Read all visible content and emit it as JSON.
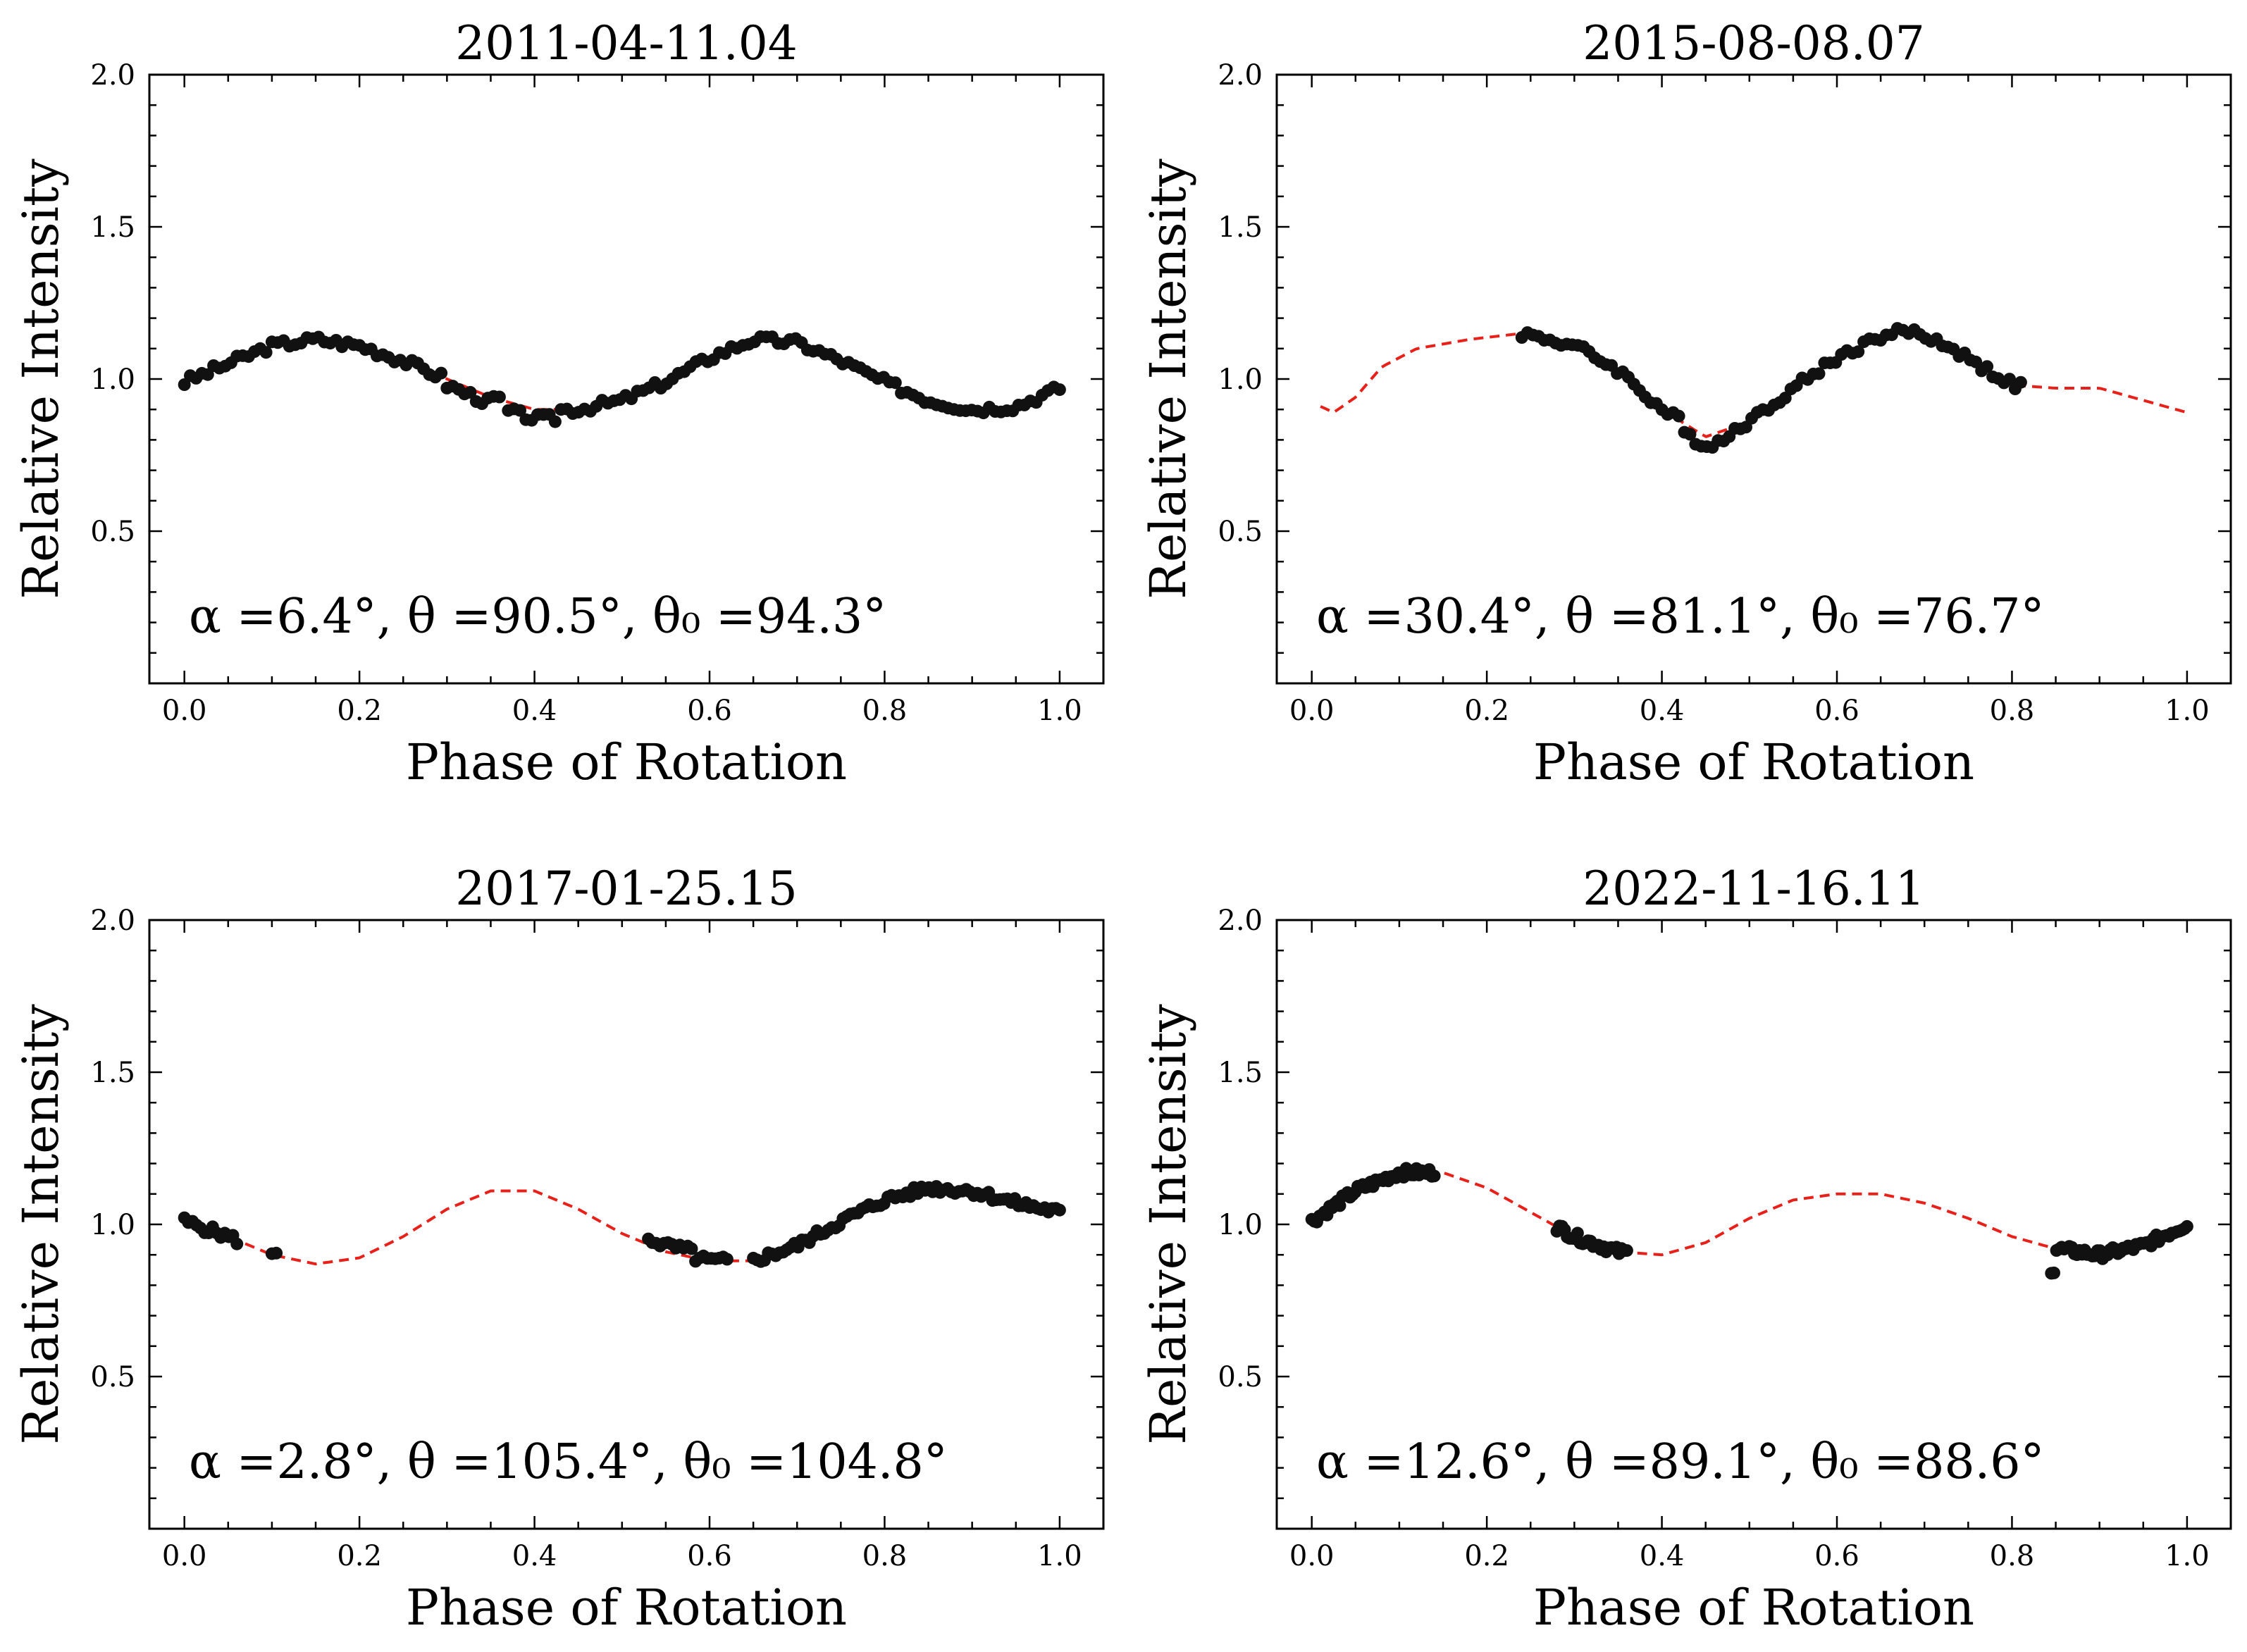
{
  "chart_data": [
    {
      "type": "scatter",
      "title": "2011-04-11.04",
      "xlabel": "Phase of Rotation",
      "ylabel": "Relative Intensity",
      "xlim": [
        -0.04,
        1.05
      ],
      "ylim": [
        0.0,
        2.0
      ],
      "xticks": [
        "0.0",
        "0.2",
        "0.4",
        "0.6",
        "0.8",
        "1.0"
      ],
      "yticks": [
        "0.5",
        "1.0",
        "1.5",
        "2.0"
      ],
      "annotation": "α =6.4°, θ =90.5°, θ₀ =94.3°",
      "model": {
        "name": "model",
        "color": "#e8201a",
        "x": [
          0.0,
          0.05,
          0.1,
          0.15,
          0.2,
          0.25,
          0.3,
          0.35,
          0.4,
          0.45,
          0.5,
          0.55,
          0.6,
          0.65,
          0.7,
          0.75,
          0.8,
          0.85,
          0.9,
          0.95,
          1.0
        ],
        "y": [
          0.99,
          1.05,
          1.11,
          1.13,
          1.11,
          1.06,
          1.0,
          0.94,
          0.9,
          0.9,
          0.93,
          0.99,
          1.07,
          1.13,
          1.12,
          1.06,
          0.99,
          0.93,
          0.9,
          0.91,
          0.97
        ]
      },
      "observed": {
        "name": "data",
        "color": "#111111",
        "segments": [
          [
            0.0,
            0.36
          ],
          [
            0.37,
            1.0
          ]
        ],
        "point_count": 150,
        "offset_segments": [
          {
            "range": [
              0.37,
              0.43
            ],
            "delta": -0.03
          },
          {
            "range": [
              0.3,
              0.35
            ],
            "delta": -0.02
          }
        ]
      }
    },
    {
      "type": "scatter",
      "title": "2015-08-08.07",
      "xlabel": "Phase of Rotation",
      "ylabel": "Relative Intensity",
      "xlim": [
        -0.04,
        1.05
      ],
      "ylim": [
        0.0,
        2.0
      ],
      "xticks": [
        "0.0",
        "0.2",
        "0.4",
        "0.6",
        "0.8",
        "1.0"
      ],
      "yticks": [
        "0.5",
        "1.0",
        "1.5",
        "2.0"
      ],
      "annotation": "α =30.4°, θ =81.1°, θ₀ =76.7°",
      "model": {
        "name": "model",
        "color": "#e8201a",
        "x": [
          0.01,
          0.025,
          0.05,
          0.08,
          0.12,
          0.18,
          0.24,
          0.3,
          0.35,
          0.4,
          0.45,
          0.5,
          0.55,
          0.6,
          0.65,
          0.68,
          0.72,
          0.76,
          0.8,
          0.85,
          0.9,
          0.95,
          1.0
        ],
        "y": [
          0.91,
          0.89,
          0.94,
          1.04,
          1.1,
          1.13,
          1.15,
          1.11,
          1.03,
          0.9,
          0.81,
          0.86,
          0.97,
          1.07,
          1.14,
          1.16,
          1.12,
          1.05,
          0.98,
          0.97,
          0.97,
          0.93,
          0.89
        ]
      },
      "observed": {
        "name": "data",
        "color": "#111111",
        "segments": [
          [
            0.24,
            0.81
          ]
        ],
        "point_count": 90,
        "offset_segments": [
          {
            "range": [
              0.42,
              0.48
            ],
            "delta": -0.03
          }
        ]
      }
    },
    {
      "type": "scatter",
      "title": "2017-01-25.15",
      "xlabel": "Phase of Rotation",
      "ylabel": "Relative Intensity",
      "xlim": [
        -0.04,
        1.05
      ],
      "ylim": [
        0.0,
        2.0
      ],
      "xticks": [
        "0.0",
        "0.2",
        "0.4",
        "0.6",
        "0.8",
        "1.0"
      ],
      "yticks": [
        "0.5",
        "1.0",
        "1.5",
        "2.0"
      ],
      "annotation": "α =2.8°, θ =105.4°, θ₀ =104.8°",
      "model": {
        "name": "model",
        "color": "#e8201a",
        "x": [
          0.0,
          0.05,
          0.1,
          0.15,
          0.2,
          0.25,
          0.3,
          0.35,
          0.4,
          0.45,
          0.5,
          0.55,
          0.6,
          0.65,
          0.7,
          0.75,
          0.8,
          0.85,
          0.9,
          0.95,
          1.0
        ],
        "y": [
          1.01,
          0.96,
          0.9,
          0.87,
          0.89,
          0.96,
          1.05,
          1.11,
          1.11,
          1.05,
          0.97,
          0.91,
          0.88,
          0.88,
          0.93,
          1.01,
          1.08,
          1.12,
          1.11,
          1.07,
          1.04
        ]
      },
      "observed": {
        "name": "data",
        "color": "#111111",
        "segments": [
          [
            0.0,
            0.06
          ],
          [
            0.1,
            0.105
          ],
          [
            0.53,
            0.62
          ],
          [
            0.65,
            1.0
          ]
        ],
        "point_count": 120,
        "offset_segments": [
          {
            "range": [
              0.53,
              0.58
            ],
            "delta": 0.02
          }
        ]
      }
    },
    {
      "type": "scatter",
      "title": "2022-11-16.11",
      "xlabel": "Phase of Rotation",
      "ylabel": "Relative Intensity",
      "xlim": [
        -0.04,
        1.05
      ],
      "ylim": [
        0.0,
        2.0
      ],
      "xticks": [
        "0.0",
        "0.2",
        "0.4",
        "0.6",
        "0.8",
        "1.0"
      ],
      "yticks": [
        "0.5",
        "1.0",
        "1.5",
        "2.0"
      ],
      "annotation": "α =12.6°, θ =89.1°, θ₀ =88.6°",
      "model": {
        "name": "model",
        "color": "#e8201a",
        "x": [
          0.0,
          0.05,
          0.1,
          0.15,
          0.2,
          0.25,
          0.3,
          0.35,
          0.4,
          0.45,
          0.5,
          0.55,
          0.6,
          0.65,
          0.7,
          0.75,
          0.8,
          0.85,
          0.9,
          0.95,
          1.0
        ],
        "y": [
          1.01,
          1.11,
          1.17,
          1.17,
          1.12,
          1.04,
          0.96,
          0.91,
          0.9,
          0.94,
          1.02,
          1.08,
          1.1,
          1.1,
          1.07,
          1.02,
          0.96,
          0.92,
          0.9,
          0.93,
          1.0
        ]
      },
      "observed": {
        "name": "data",
        "color": "#111111",
        "segments": [
          [
            0.0,
            0.14
          ],
          [
            0.28,
            0.36
          ],
          [
            0.845,
            1.0
          ]
        ],
        "point_count": 130,
        "offset_segments": [
          {
            "range": [
              0.845,
              0.85
            ],
            "delta": -0.07
          }
        ]
      }
    }
  ]
}
